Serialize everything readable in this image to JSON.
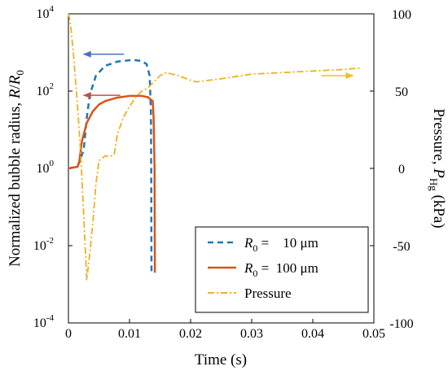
{
  "chart_data": {
    "type": "line",
    "xlabel": "Time (s)",
    "ylabel_left": {
      "main": "Normalized bubble radius, ",
      "var": "R",
      "sep": "/",
      "var2": "R",
      "sub2": "0"
    },
    "ylabel_right": {
      "main": "Pressure, ",
      "var": "P",
      "sub": "Hg",
      "unit": " (kPa)"
    },
    "xlim": [
      0,
      0.05
    ],
    "x_ticks": [
      "0",
      "0.01",
      "0.02",
      "0.03",
      "0.04",
      "0.05"
    ],
    "y_left_scale": "log",
    "y_left_lim": [
      0.0001,
      10000
    ],
    "y_left_ticks": [
      {
        "base": "10",
        "exp": "-4"
      },
      {
        "base": "10",
        "exp": "-2"
      },
      {
        "base": "10",
        "exp": "0"
      },
      {
        "base": "10",
        "exp": "2"
      },
      {
        "base": "10",
        "exp": "4"
      }
    ],
    "y_right_lim": [
      -100,
      100
    ],
    "y_right_ticks": [
      "-100",
      "-50",
      "0",
      "50",
      "100"
    ],
    "grid": false,
    "legend_position": "lower-right",
    "series": [
      {
        "label_var": "R",
        "label_sub": "0",
        "label_eq": " =    10 μm",
        "axis": "left",
        "color": "#1f77b4",
        "style": "dashed",
        "points": [
          [
            0,
            1
          ],
          [
            0.0015,
            1.1
          ],
          [
            0.0025,
            3
          ],
          [
            0.003,
            20
          ],
          [
            0.0035,
            80
          ],
          [
            0.0045,
            250
          ],
          [
            0.006,
            450
          ],
          [
            0.008,
            580
          ],
          [
            0.01,
            630
          ],
          [
            0.011,
            630
          ],
          [
            0.012,
            600
          ],
          [
            0.0128,
            500
          ],
          [
            0.0133,
            250
          ],
          [
            0.0135,
            30
          ],
          [
            0.01355,
            1
          ],
          [
            0.01358,
            0.01
          ],
          [
            0.0136,
            0.002
          ]
        ]
      },
      {
        "label_var": "R",
        "label_sub": "0",
        "label_eq": " =  100 μm",
        "axis": "left",
        "color": "#d95319",
        "style": "solid",
        "points": [
          [
            0,
            1
          ],
          [
            0.0015,
            1.1
          ],
          [
            0.0018,
            1.6
          ],
          [
            0.0022,
            5
          ],
          [
            0.003,
            15
          ],
          [
            0.004,
            30
          ],
          [
            0.005,
            45
          ],
          [
            0.006,
            55
          ],
          [
            0.008,
            68
          ],
          [
            0.01,
            75
          ],
          [
            0.012,
            75
          ],
          [
            0.013,
            70
          ],
          [
            0.0138,
            55
          ],
          [
            0.01395,
            20
          ],
          [
            0.0141,
            1
          ],
          [
            0.01415,
            0.002
          ]
        ]
      },
      {
        "label": "Pressure",
        "axis": "right",
        "color": "#edb120",
        "style": "dashdot",
        "points": [
          [
            0,
            100
          ],
          [
            0.0003,
            95
          ],
          [
            0.0008,
            75
          ],
          [
            0.0015,
            40
          ],
          [
            0.002,
            10
          ],
          [
            0.0025,
            -30
          ],
          [
            0.003,
            -72
          ],
          [
            0.0035,
            -55
          ],
          [
            0.004,
            -35
          ],
          [
            0.0045,
            -10
          ],
          [
            0.005,
            5
          ],
          [
            0.006,
            8
          ],
          [
            0.007,
            8
          ],
          [
            0.0075,
            9
          ],
          [
            0.008,
            22
          ],
          [
            0.009,
            33
          ],
          [
            0.01,
            40
          ],
          [
            0.011,
            46
          ],
          [
            0.012,
            50
          ],
          [
            0.013,
            52
          ],
          [
            0.014,
            56
          ],
          [
            0.015,
            60
          ],
          [
            0.016,
            62
          ],
          [
            0.018,
            60
          ],
          [
            0.02,
            57
          ],
          [
            0.021,
            56
          ],
          [
            0.023,
            57
          ],
          [
            0.025,
            58
          ],
          [
            0.03,
            61
          ],
          [
            0.035,
            62
          ],
          [
            0.04,
            63
          ],
          [
            0.045,
            64
          ],
          [
            0.048,
            65
          ]
        ]
      }
    ],
    "annotations": [
      {
        "type": "arrow",
        "color": "#4472c4",
        "from": [
          0.0091,
          900
        ],
        "to": [
          0.0025,
          900
        ]
      },
      {
        "type": "arrow",
        "color": "#c0504d",
        "from": [
          0.0085,
          78
        ],
        "to": [
          0.0025,
          78
        ]
      },
      {
        "type": "arrow",
        "color": "#f0c020",
        "from": [
          0.0414,
          60
        ],
        "to": [
          0.0466,
          60
        ]
      }
    ]
  }
}
